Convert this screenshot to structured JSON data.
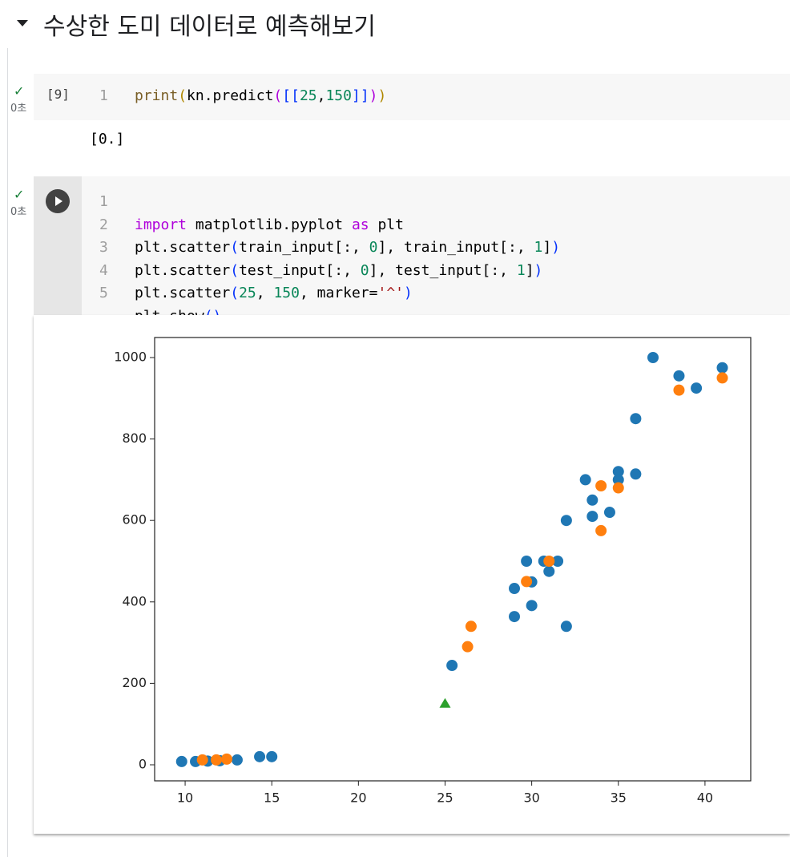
{
  "header": {
    "title": "수상한 도미 데이터로 예측해보기"
  },
  "cells": [
    {
      "status": "0초",
      "execution_count": "[9]",
      "line_numbers": [
        "1"
      ],
      "code": [
        [
          "print",
          "(",
          "kn.predict",
          "(",
          "[[",
          "25",
          ",",
          "150",
          "]]",
          ")",
          ")"
        ]
      ],
      "output": "[0.]"
    },
    {
      "status": "0초",
      "line_numbers": [
        "1",
        "2",
        "3",
        "4",
        "5"
      ],
      "code": [
        [
          "import",
          " matplotlib.pyplot ",
          "as",
          " plt"
        ],
        [
          "plt.scatter",
          "(",
          "train_input[:, ",
          "0",
          "], train_input[:, ",
          "1",
          "]",
          ")"
        ],
        [
          "plt.scatter",
          "(",
          "test_input[:, ",
          "0",
          "], test_input[:, ",
          "1",
          "]",
          ")"
        ],
        [
          "plt.scatter",
          "(",
          "25",
          ", ",
          "150",
          ", marker=",
          "'^'",
          ")"
        ],
        [
          "plt.show",
          "()"
        ]
      ]
    }
  ],
  "chart_data": {
    "type": "scatter",
    "xlim": [
      8.24,
      42.64
    ],
    "ylim": [
      -39.4,
      1049.2
    ],
    "xticks": [
      10,
      15,
      20,
      25,
      30,
      35,
      40
    ],
    "yticks": [
      0,
      200,
      400,
      600,
      800,
      1000
    ],
    "series": [
      {
        "color": "#1f77b4",
        "marker": "o",
        "x": [
          9.8,
          10.6,
          11.3,
          12.0,
          13.0,
          14.3,
          15.0,
          25.4,
          29.0,
          29.0,
          29.7,
          30.0,
          30.0,
          30.7,
          31.0,
          31.5,
          32.0,
          32.0,
          33.1,
          33.5,
          33.5,
          34.5,
          35.0,
          35.0,
          36.0,
          36.0,
          37.0,
          38.5,
          39.5,
          41.0
        ],
        "values": [
          8,
          8,
          9,
          10,
          12,
          20,
          20,
          244,
          364,
          433,
          500,
          449,
          391,
          500,
          475,
          500,
          340,
          600,
          700,
          650,
          610,
          620,
          720,
          700,
          850,
          714,
          1000,
          955,
          925,
          975
        ]
      },
      {
        "color": "#ff7f0e",
        "marker": "o",
        "x": [
          11.0,
          11.8,
          12.4,
          26.3,
          26.5,
          29.7,
          31.0,
          34.0,
          34.0,
          35.0,
          38.5,
          41.0
        ],
        "values": [
          12,
          12,
          14,
          290,
          340,
          450,
          500,
          685,
          575,
          680,
          920,
          950
        ]
      },
      {
        "color": "#2ca02c",
        "marker": "^",
        "x": [
          25
        ],
        "values": [
          150
        ]
      }
    ]
  }
}
